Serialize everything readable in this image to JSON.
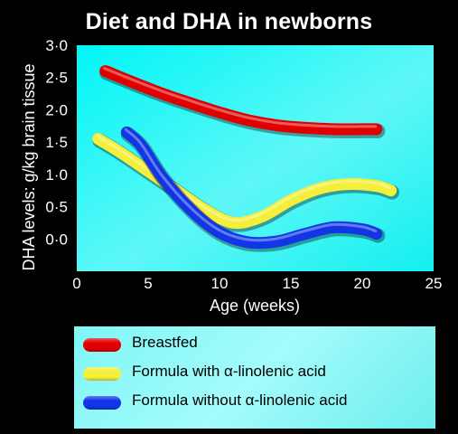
{
  "chart_data": {
    "type": "line",
    "title": "Diet and DHA in newborns",
    "xlabel": "Age (weeks)",
    "ylabel": "DHA levels: g/kg brain tissue",
    "xlim": [
      0,
      25
    ],
    "ylim": [
      -0.5,
      3.0
    ],
    "x_ticks": [
      "0",
      "5",
      "10",
      "15",
      "20",
      "25"
    ],
    "y_ticks": [
      "0·0",
      "0·5",
      "1·0",
      "1·5",
      "2·0",
      "2·5",
      "3·0"
    ],
    "y_tick_values": [
      0.0,
      0.5,
      1.0,
      1.5,
      2.0,
      2.5,
      3.0
    ],
    "x_tick_values": [
      0,
      5,
      10,
      15,
      20,
      25
    ],
    "background": "#00ffff",
    "grid": false,
    "legend_position": "below",
    "series": [
      {
        "name": "Breastfed",
        "color": "#e00000",
        "x": [
          2,
          4,
          6,
          8,
          10,
          12,
          14,
          16,
          18,
          20,
          21
        ],
        "y": [
          2.6,
          2.42,
          2.25,
          2.1,
          1.96,
          1.84,
          1.76,
          1.72,
          1.7,
          1.7,
          1.7
        ]
      },
      {
        "name": "Formula with α-linolenic acid",
        "color": "#f5ee3a",
        "x": [
          1.5,
          3,
          5,
          7,
          9,
          11,
          13,
          15,
          17,
          19,
          21,
          22
        ],
        "y": [
          1.55,
          1.35,
          1.05,
          0.75,
          0.45,
          0.25,
          0.35,
          0.6,
          0.78,
          0.85,
          0.82,
          0.75
        ]
      },
      {
        "name": "Formula without α-linolenic acid",
        "color": "#1235e6",
        "x": [
          3.5,
          4.5,
          6,
          8,
          10,
          12,
          14,
          16,
          18,
          20,
          21
        ],
        "y": [
          1.65,
          1.45,
          0.95,
          0.45,
          0.1,
          -0.05,
          -0.04,
          0.08,
          0.18,
          0.15,
          0.08
        ]
      }
    ]
  }
}
